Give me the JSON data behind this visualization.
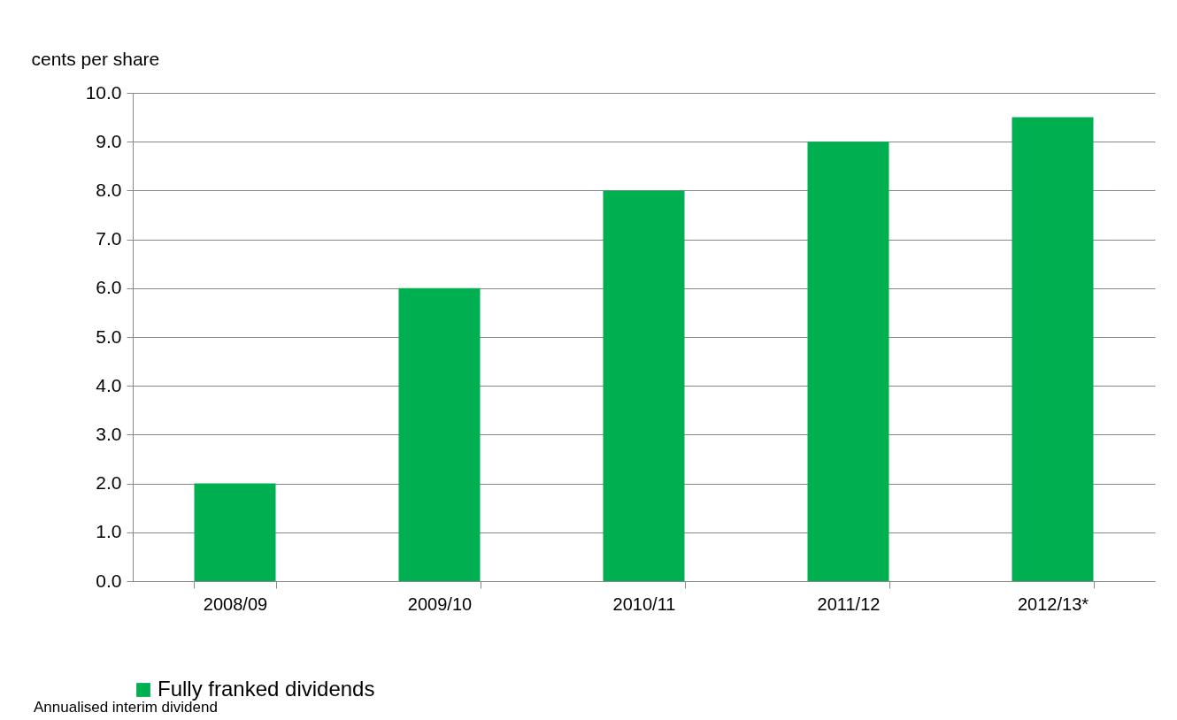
{
  "chart_data": {
    "type": "bar",
    "ylabel": "cents per share",
    "categories": [
      "2008/09",
      "2009/10",
      "2010/11",
      "2011/12",
      "2012/13*"
    ],
    "series": [
      {
        "name": "Fully franked dividends",
        "color": "#00b050",
        "values": [
          2.0,
          6.0,
          8.0,
          9.0,
          9.5
        ]
      }
    ],
    "ylim": [
      0,
      10
    ],
    "yticks": [
      {
        "value": 0,
        "label": "0.0"
      },
      {
        "value": 1,
        "label": "1.0"
      },
      {
        "value": 2,
        "label": "2.0"
      },
      {
        "value": 3,
        "label": "3.0"
      },
      {
        "value": 4,
        "label": "4.0"
      },
      {
        "value": 5,
        "label": "5.0"
      },
      {
        "value": 6,
        "label": "6.0"
      },
      {
        "value": 7,
        "label": "7.0"
      },
      {
        "value": 8,
        "label": "8.0"
      },
      {
        "value": 9,
        "label": "9.0"
      },
      {
        "value": 10,
        "label": "10.0"
      }
    ],
    "grid": "y",
    "legend": "bottom",
    "annotations": [
      "Annualised interim dividend"
    ]
  }
}
